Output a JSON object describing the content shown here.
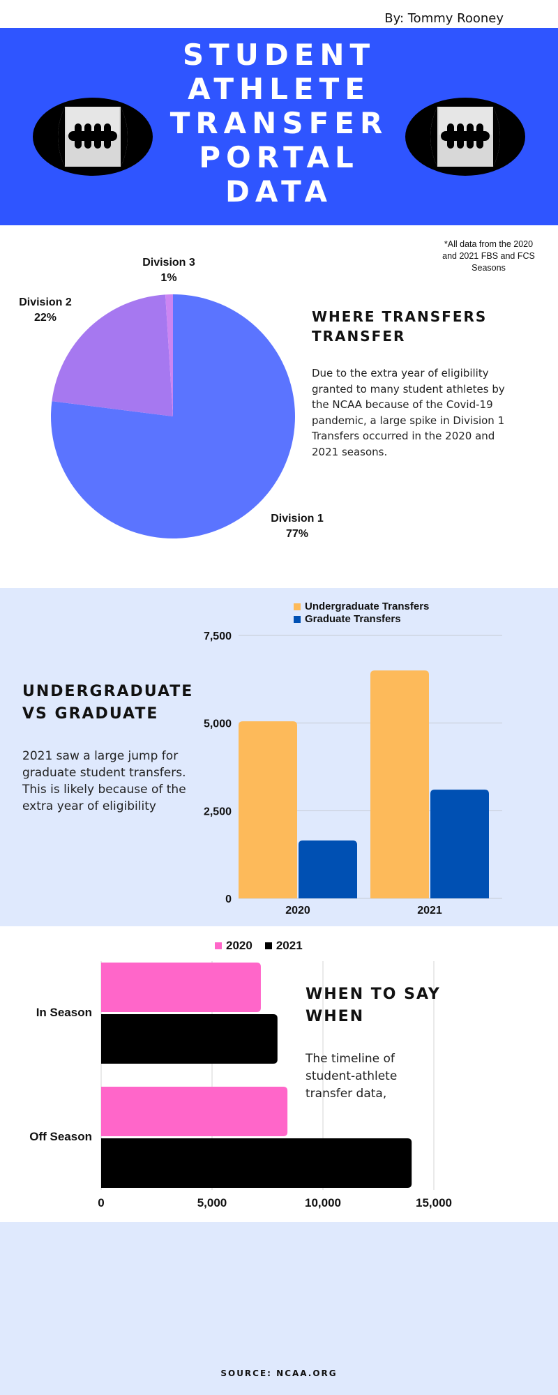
{
  "author": "By: Tommy Rooney",
  "header": {
    "title_lines": [
      "STUDENT",
      "ATHLETE",
      "TRANSFER",
      "PORTAL",
      "DATA"
    ]
  },
  "colors": {
    "header_bg": "#2f55ff",
    "band_bg": "#dfe9fd",
    "pie_d1": "#5b74ff",
    "pie_d2": "#a678f0",
    "pie_d3": "#cc85f2",
    "undergrad": "#fdba5a",
    "graduate": "#0050b3",
    "y2020": "#ff66c9",
    "y2021": "#000000"
  },
  "icons": [
    "football-icon"
  ],
  "note": "*All data from the 2020 and 2021 FBS and FCS Seasons",
  "where_section": {
    "heading": "WHERE TRANSFERS TRANSFER",
    "text": "Due to the extra year of eligibility granted to many student athletes by the NCAA because of the Covid-19 pandemic, a large spike in Division 1 Transfers occurred in the 2020 and 2021 seasons."
  },
  "ug_section": {
    "heading": "UNDERGRADUATE VS GRADUATE",
    "text": "2021 saw a large jump for graduate student transfers. This is likely because of the extra year of  eligibility"
  },
  "when_section": {
    "heading": "WHEN TO SAY WHEN",
    "text": "The timeline of student-athlete transfer data,"
  },
  "source": "SOURCE: NCAA.ORG",
  "chart_data": [
    {
      "type": "pie",
      "labels": [
        "Division 1",
        "Division 2",
        "Division 3"
      ],
      "values": [
        77,
        22,
        1
      ],
      "value_labels": [
        "77%",
        "22%",
        "1%"
      ]
    },
    {
      "type": "bar",
      "categories": [
        "2020",
        "2021"
      ],
      "series": [
        {
          "name": "Undergraduate Transfers",
          "values": [
            5050,
            6500
          ]
        },
        {
          "name": "Graduate Transfers",
          "values": [
            1650,
            3100
          ]
        }
      ],
      "ylim": [
        0,
        7500
      ],
      "yticks": [
        0,
        2500,
        5000,
        7500
      ],
      "ytick_labels": [
        "0",
        "2,500",
        "5,000",
        "7,500"
      ],
      "legend": "top"
    },
    {
      "type": "bar",
      "orientation": "horizontal",
      "categories": [
        "In Season",
        "Off Season"
      ],
      "series": [
        {
          "name": "2020",
          "values": [
            7200,
            8400
          ]
        },
        {
          "name": "2021",
          "values": [
            7950,
            14000
          ]
        }
      ],
      "xlim": [
        0,
        15000
      ],
      "xticks": [
        0,
        5000,
        10000,
        15000
      ],
      "xtick_labels": [
        "0",
        "5,000",
        "10,000",
        "15,000"
      ],
      "legend": "top"
    }
  ]
}
